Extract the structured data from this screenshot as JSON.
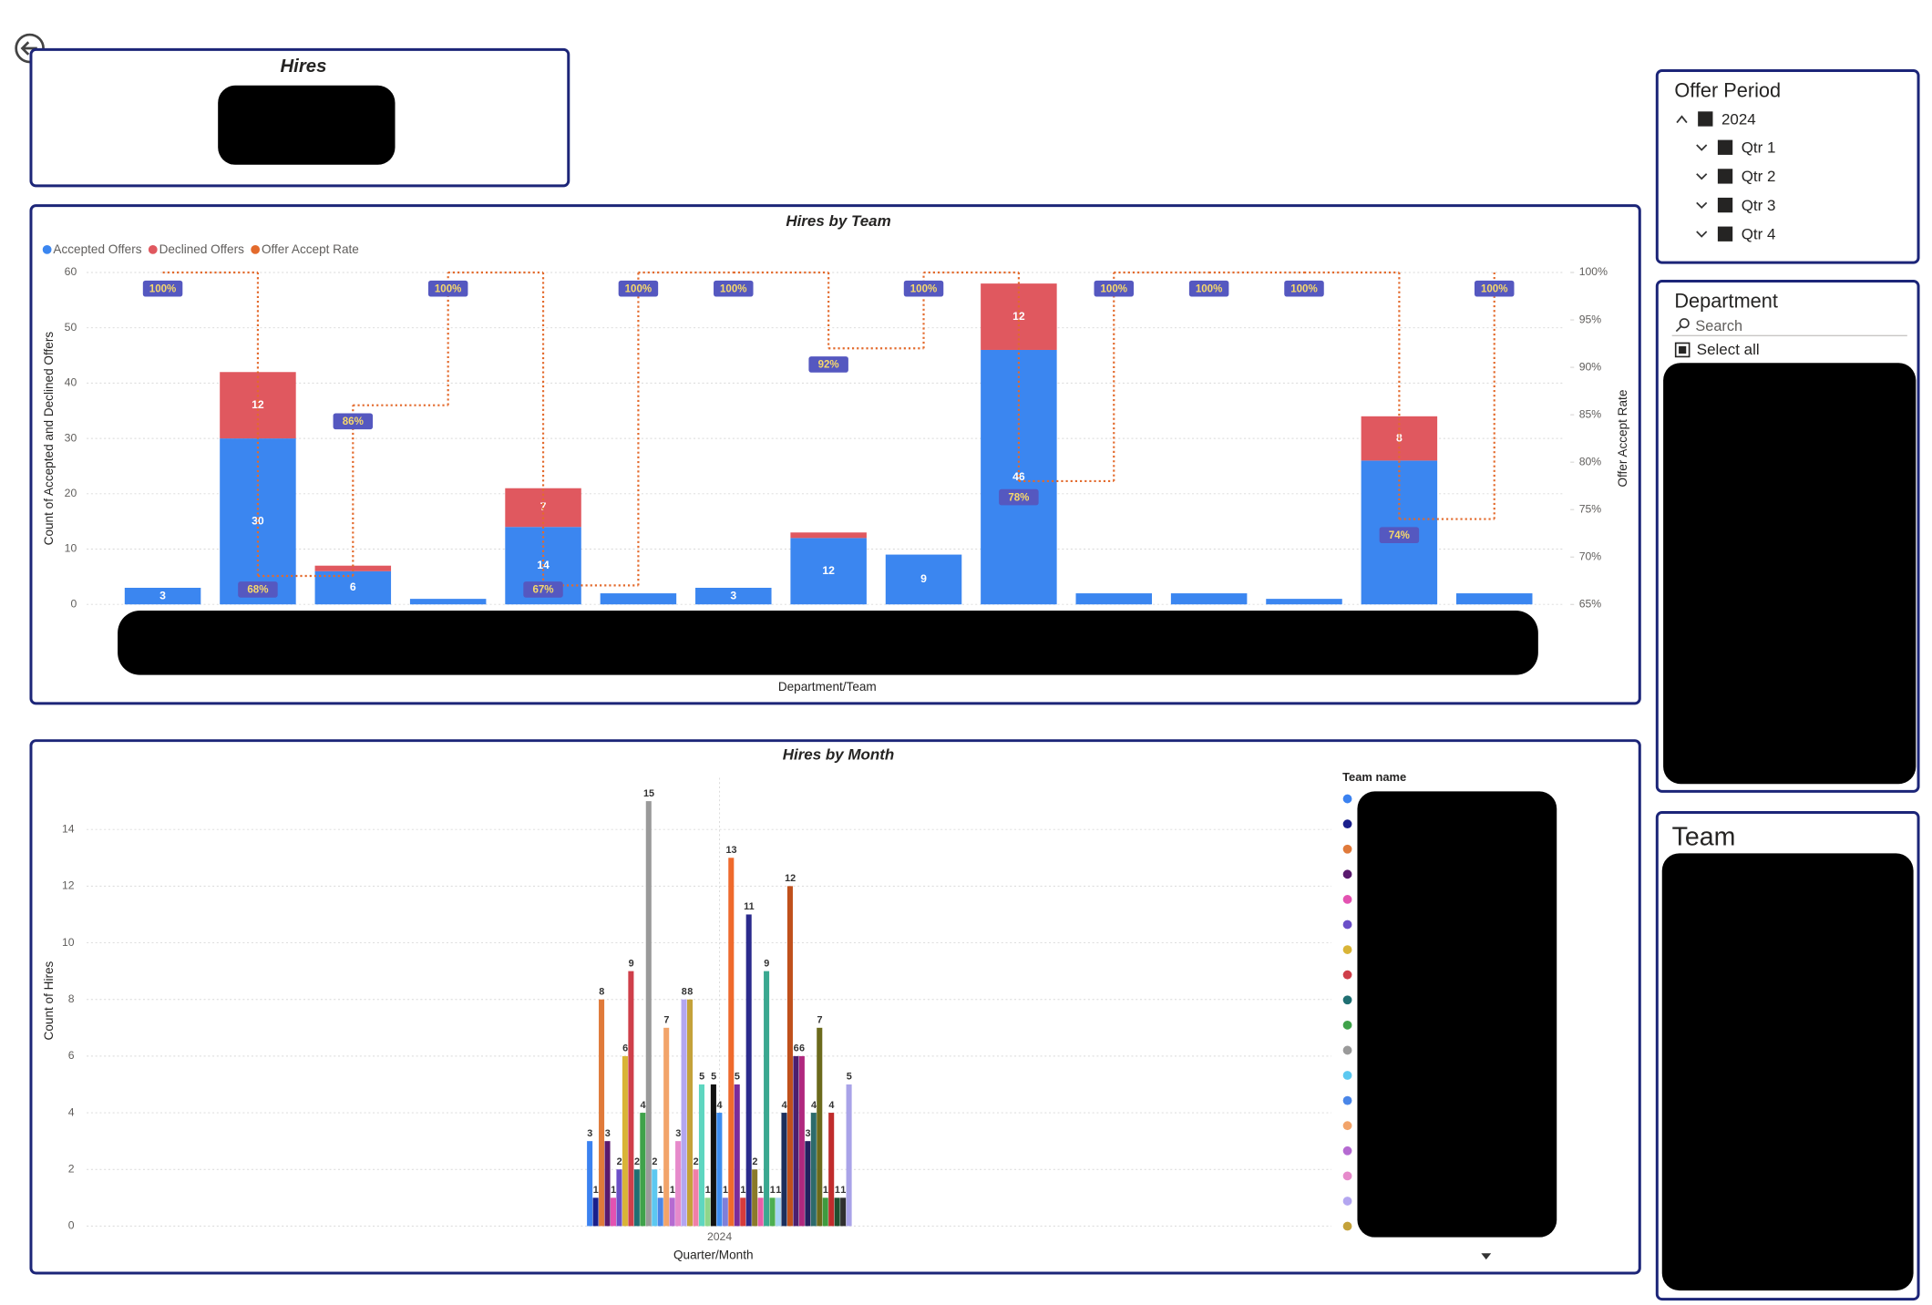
{
  "hires_card": {
    "title": "Hires"
  },
  "chart_data": [
    {
      "type": "combo",
      "title": "Hires by Team",
      "x_label": "Department/Team",
      "y_label": "Count of Accepted and Declined Offers",
      "y2_label": "Offer Accept Rate",
      "categories": [
        null,
        null,
        null,
        null,
        null,
        null,
        null,
        null,
        null,
        null,
        null,
        null,
        null,
        null,
        null
      ],
      "series": [
        {
          "name": "Accepted Offers",
          "type": "bar",
          "color": "#3b86f0",
          "values": [
            3,
            30,
            6,
            1,
            14,
            2,
            3,
            12,
            9,
            46,
            2,
            2,
            1,
            26,
            2
          ]
        },
        {
          "name": "Declined Offers",
          "type": "bar",
          "color": "#e0585f",
          "values": [
            0,
            12,
            1,
            0,
            7,
            0,
            0,
            1,
            0,
            12,
            0,
            0,
            0,
            8,
            0
          ]
        },
        {
          "name": "Offer Accept Rate",
          "type": "line",
          "axis": "y2",
          "color": "#e36a2c",
          "values": [
            100,
            68,
            86,
            100,
            67,
            100,
            100,
            92,
            100,
            78,
            100,
            100,
            100,
            74,
            100
          ],
          "value_labels": [
            "100%",
            "68%",
            "86%",
            "100%",
            "67%",
            "100%",
            "100%",
            "92%",
            "100%",
            "78%",
            "100%",
            "100%",
            "100%",
            "74%",
            "100%"
          ]
        }
      ],
      "ylim": [
        0,
        60
      ],
      "yticks": [
        0,
        10,
        20,
        30,
        40,
        50,
        60
      ],
      "y2lim": [
        65,
        100
      ],
      "y2ticks": [
        {
          "value": 65,
          "label": "65%"
        },
        {
          "value": 70,
          "label": "70%"
        },
        {
          "value": 75,
          "label": "75%"
        },
        {
          "value": 80,
          "label": "80%"
        },
        {
          "value": 85,
          "label": "85%"
        },
        {
          "value": 90,
          "label": "90%"
        },
        {
          "value": 95,
          "label": "95%"
        },
        {
          "value": 100,
          "label": "100%"
        }
      ],
      "grid": true,
      "legend": "top-left"
    },
    {
      "type": "bar",
      "title": "Hires by Month",
      "x_label": "Quarter/Month",
      "y_label": "Count of Hires",
      "legend_title": "Team name",
      "categories": [
        "2024"
      ],
      "series": [
        {
          "name": null,
          "color": "#3b82f0",
          "values": [
            3
          ]
        },
        {
          "name": null,
          "color": "#1a1f8c",
          "values": [
            1
          ]
        },
        {
          "name": null,
          "color": "#e07a3a",
          "values": [
            8
          ]
        },
        {
          "name": null,
          "color": "#5a1a6e",
          "values": [
            3
          ]
        },
        {
          "name": null,
          "color": "#e352b1",
          "values": [
            1
          ]
        },
        {
          "name": null,
          "color": "#6b4fc8",
          "values": [
            2
          ]
        },
        {
          "name": null,
          "color": "#d9b437",
          "values": [
            6
          ]
        },
        {
          "name": null,
          "color": "#cf3f4a",
          "values": [
            9
          ]
        },
        {
          "name": null,
          "color": "#1f6f72",
          "values": [
            2
          ]
        },
        {
          "name": null,
          "color": "#3fa24a",
          "values": [
            4
          ]
        },
        {
          "name": null,
          "color": "#9a9a9a",
          "values": [
            15
          ]
        },
        {
          "name": null,
          "color": "#5cc8f0",
          "values": [
            2
          ]
        },
        {
          "name": null,
          "color": "#4a86e8",
          "values": [
            1
          ]
        },
        {
          "name": null,
          "color": "#f2a46a",
          "values": [
            7
          ]
        },
        {
          "name": null,
          "color": "#b56ad1",
          "values": [
            1
          ]
        },
        {
          "name": null,
          "color": "#e68acb",
          "values": [
            3
          ]
        },
        {
          "name": null,
          "color": "#b3a6f0",
          "values": [
            8
          ]
        },
        {
          "name": null,
          "color": "#c4a23a",
          "values": [
            8
          ]
        },
        {
          "name": null,
          "color": "#f07ea8",
          "values": [
            2
          ]
        },
        {
          "name": null,
          "color": "#5ed6c0",
          "values": [
            5
          ]
        },
        {
          "name": null,
          "color": "#8fd68a",
          "values": [
            1
          ]
        },
        {
          "name": null,
          "color": "#111111",
          "values": [
            5
          ]
        },
        {
          "name": null,
          "color": "#3d8df0",
          "values": [
            4
          ]
        },
        {
          "name": null,
          "color": "#7f7fd9",
          "values": [
            1
          ]
        },
        {
          "name": null,
          "color": "#ef6a2c",
          "values": [
            13
          ]
        },
        {
          "name": null,
          "color": "#7a2c9a",
          "values": [
            5
          ]
        },
        {
          "name": null,
          "color": "#d63b3b",
          "values": [
            1
          ]
        },
        {
          "name": null,
          "color": "#2a2a8c",
          "values": [
            11
          ]
        },
        {
          "name": null,
          "color": "#8a7a2a",
          "values": [
            2
          ]
        },
        {
          "name": null,
          "color": "#e85ea8",
          "values": [
            1
          ]
        },
        {
          "name": null,
          "color": "#3aa890",
          "values": [
            9
          ]
        },
        {
          "name": null,
          "color": "#4caf50",
          "values": [
            1
          ]
        },
        {
          "name": null,
          "color": "#a6d4f2",
          "values": [
            1
          ]
        },
        {
          "name": null,
          "color": "#1c2f5c",
          "values": [
            4
          ]
        },
        {
          "name": null,
          "color": "#c0501c",
          "values": [
            12
          ]
        },
        {
          "name": null,
          "color": "#4b1f6e",
          "values": [
            6
          ]
        },
        {
          "name": null,
          "color": "#b0287e",
          "values": [
            6
          ]
        },
        {
          "name": null,
          "color": "#24205e",
          "values": [
            3
          ]
        },
        {
          "name": null,
          "color": "#2d6b6b",
          "values": [
            4
          ]
        },
        {
          "name": null,
          "color": "#6b6a1c",
          "values": [
            7
          ]
        },
        {
          "name": null,
          "color": "#3f9b3f",
          "values": [
            1
          ]
        },
        {
          "name": null,
          "color": "#c02c2c",
          "values": [
            4
          ]
        },
        {
          "name": null,
          "color": "#1f4f2f",
          "values": [
            1
          ]
        },
        {
          "name": null,
          "color": "#2f2f2f",
          "values": [
            1
          ]
        },
        {
          "name": null,
          "color": "#a9a3e8",
          "values": [
            5
          ]
        }
      ],
      "ylim": [
        0,
        16
      ],
      "yticks": [
        0,
        2,
        4,
        6,
        8,
        10,
        12,
        14
      ],
      "grid": true,
      "legend": "right"
    }
  ],
  "offer_period_slicer": {
    "title": "Offer Period",
    "items": [
      "2024",
      "Qtr 1",
      "Qtr 2",
      "Qtr 3",
      "Qtr 4"
    ]
  },
  "department_slicer": {
    "title": "Department",
    "search_placeholder": "Search",
    "select_all": "Select all"
  },
  "team_slicer": {
    "title": "Team"
  }
}
